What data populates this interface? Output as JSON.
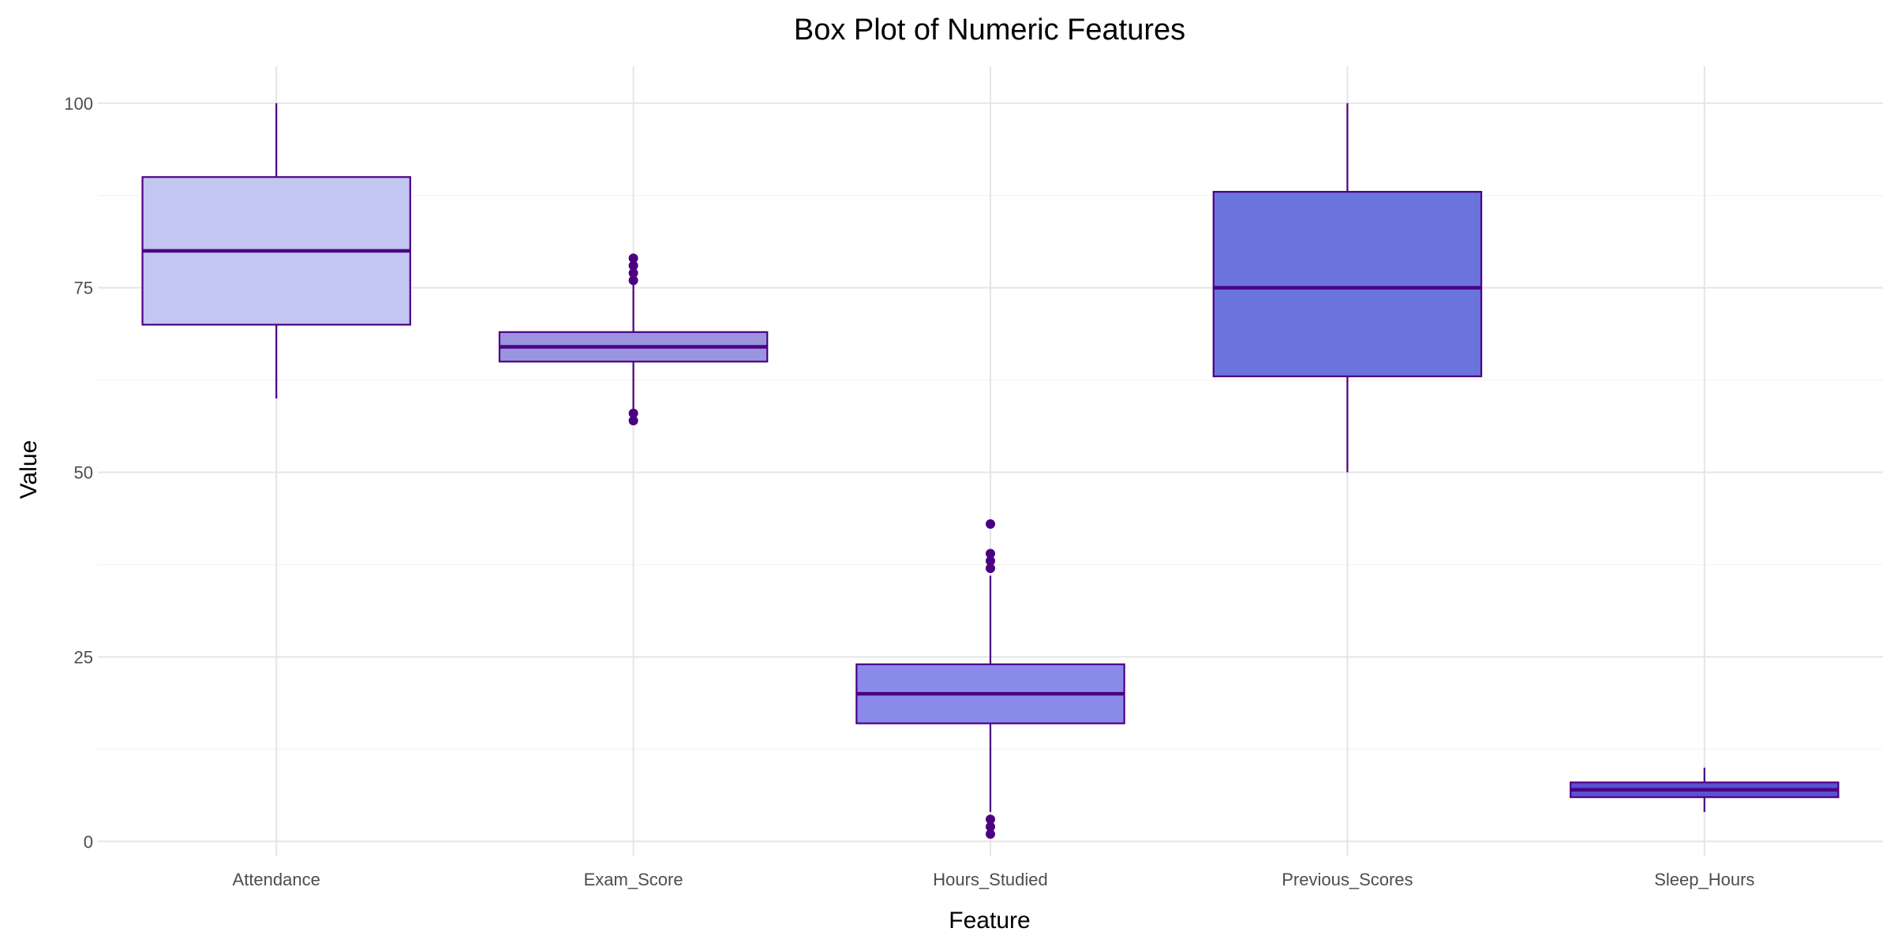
{
  "chart_data": {
    "type": "box",
    "title": "Box Plot of Numeric Features",
    "xlabel": "Feature",
    "ylabel": "Value",
    "ylim": [
      -2,
      105
    ],
    "yticks": [
      0,
      25,
      50,
      75,
      100
    ],
    "grid": true,
    "legend": "none",
    "categories": [
      "Attendance",
      "Exam_Score",
      "Hours_Studied",
      "Previous_Scores",
      "Sleep_Hours"
    ],
    "boxes": [
      {
        "category": "Attendance",
        "whisker_low": 60,
        "q1": 70,
        "median": 80,
        "q3": 90,
        "whisker_high": 100,
        "outliers": [],
        "fill": "#c3c6f1"
      },
      {
        "category": "Exam_Score",
        "whisker_low": 58.5,
        "q1": 65,
        "median": 67,
        "q3": 69,
        "whisker_high": 75.5,
        "outliers": [
          57,
          58,
          76,
          77,
          78,
          79
        ],
        "fill": "#9a94de"
      },
      {
        "category": "Hours_Studied",
        "whisker_low": 4,
        "q1": 16,
        "median": 20,
        "q3": 24,
        "whisker_high": 36,
        "outliers": [
          1,
          2,
          3,
          37,
          38,
          39,
          43
        ],
        "fill": "#8a8aea"
      },
      {
        "category": "Previous_Scores",
        "whisker_low": 50,
        "q1": 63,
        "median": 75,
        "q3": 88,
        "whisker_high": 100,
        "outliers": [],
        "fill": "#6b73dd"
      },
      {
        "category": "Sleep_Hours",
        "whisker_low": 4,
        "q1": 6,
        "median": 7,
        "q3": 8,
        "whisker_high": 10,
        "outliers": [],
        "fill": "#5a52d2"
      }
    ],
    "colors": {
      "outline": "#4b0082",
      "median": "#4b0082",
      "outlier": "#4b0082"
    }
  }
}
